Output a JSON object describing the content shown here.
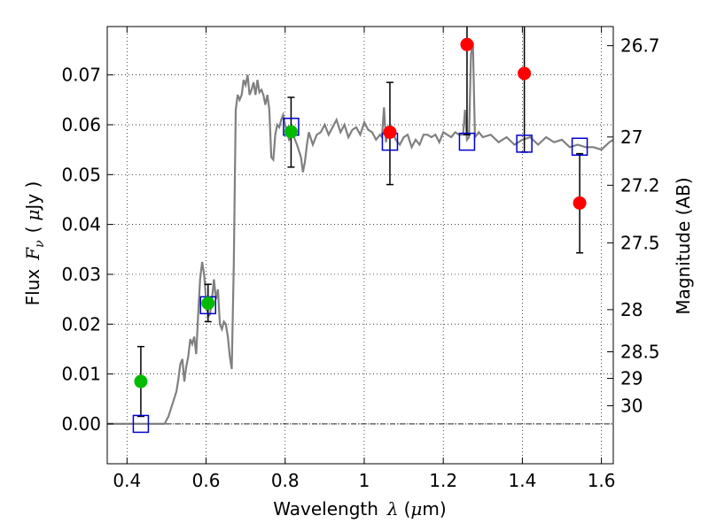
{
  "chart_data": {
    "type": "scatter",
    "xlabel": "Wavelength",
    "xlabel_symbol": "λ",
    "xlabel_unit_open": "(",
    "xlabel_unit_mu": "μ",
    "xlabel_unit_rest": "m)",
    "ylabel": "Flux",
    "ylabel_symbol_base": "F",
    "ylabel_symbol_sub": "ν",
    "ylabel_unit_open": "(",
    "ylabel_unit_mu": "μ",
    "ylabel_unit_rest": "Jy )",
    "ylabel_right": "Magnitude (AB)",
    "xlim": [
      0.35,
      1.63
    ],
    "ylim": [
      -0.008,
      0.0797
    ],
    "grid": true,
    "xticks": [
      {
        "v": 0.4,
        "label": "0.4"
      },
      {
        "v": 0.6,
        "label": "0.6"
      },
      {
        "v": 0.8,
        "label": "0.8"
      },
      {
        "v": 1.0,
        "label": "1"
      },
      {
        "v": 1.2,
        "label": "1.2"
      },
      {
        "v": 1.4,
        "label": "1.4"
      },
      {
        "v": 1.6,
        "label": "1.6"
      }
    ],
    "yticks": [
      {
        "v": 0.0,
        "label": "0.00"
      },
      {
        "v": 0.01,
        "label": "0.01"
      },
      {
        "v": 0.02,
        "label": "0.02"
      },
      {
        "v": 0.03,
        "label": "0.03"
      },
      {
        "v": 0.04,
        "label": "0.04"
      },
      {
        "v": 0.05,
        "label": "0.05"
      },
      {
        "v": 0.06,
        "label": "0.06"
      },
      {
        "v": 0.07,
        "label": "0.07"
      }
    ],
    "right_ticks": [
      {
        "mag": 26.7,
        "label": "26.7"
      },
      {
        "mag": 27.0,
        "label": "27"
      },
      {
        "mag": 27.2,
        "label": "27.2"
      },
      {
        "mag": 27.5,
        "label": "27.5"
      },
      {
        "mag": 28.0,
        "label": "28"
      },
      {
        "mag": 28.5,
        "label": "28.5"
      },
      {
        "mag": 29.0,
        "label": "29"
      },
      {
        "mag": 30.0,
        "label": "30"
      }
    ],
    "spectrum": {
      "color": "#808080",
      "x": [
        0.35,
        0.495,
        0.505,
        0.515,
        0.525,
        0.53,
        0.535,
        0.54,
        0.545,
        0.55,
        0.555,
        0.56,
        0.565,
        0.57,
        0.575,
        0.58,
        0.585,
        0.59,
        0.595,
        0.6,
        0.605,
        0.61,
        0.615,
        0.62,
        0.625,
        0.63,
        0.635,
        0.64,
        0.645,
        0.65,
        0.655,
        0.66,
        0.665,
        0.67,
        0.675,
        0.68,
        0.685,
        0.69,
        0.695,
        0.7,
        0.705,
        0.71,
        0.715,
        0.72,
        0.725,
        0.73,
        0.735,
        0.74,
        0.745,
        0.75,
        0.755,
        0.76,
        0.765,
        0.77,
        0.775,
        0.78,
        0.785,
        0.79,
        0.795,
        0.8,
        0.81,
        0.82,
        0.83,
        0.84,
        0.845,
        0.85,
        0.855,
        0.86,
        0.87,
        0.88,
        0.89,
        0.9,
        0.91,
        0.92,
        0.93,
        0.94,
        0.95,
        0.96,
        0.97,
        0.98,
        0.99,
        1.0,
        1.01,
        1.02,
        1.03,
        1.04,
        1.045,
        1.05,
        1.055,
        1.06,
        1.07,
        1.08,
        1.09,
        1.1,
        1.11,
        1.12,
        1.13,
        1.14,
        1.15,
        1.16,
        1.17,
        1.18,
        1.19,
        1.2,
        1.21,
        1.22,
        1.23,
        1.24,
        1.25,
        1.255,
        1.26,
        1.265,
        1.27,
        1.275,
        1.28,
        1.29,
        1.3,
        1.32,
        1.34,
        1.36,
        1.38,
        1.4,
        1.42,
        1.44,
        1.46,
        1.48,
        1.5,
        1.52,
        1.54,
        1.56,
        1.58,
        1.6,
        1.62,
        1.63
      ],
      "y": [
        0.0,
        0.0,
        0.0015,
        0.004,
        0.0065,
        0.009,
        0.012,
        0.013,
        0.0085,
        0.0115,
        0.0135,
        0.017,
        0.016,
        0.0175,
        0.014,
        0.022,
        0.029,
        0.0325,
        0.03,
        0.025,
        0.0215,
        0.022,
        0.025,
        0.029,
        0.025,
        0.027,
        0.02,
        0.019,
        0.0205,
        0.02,
        0.0175,
        0.0135,
        0.011,
        0.032,
        0.063,
        0.066,
        0.065,
        0.066,
        0.069,
        0.068,
        0.07,
        0.066,
        0.067,
        0.0685,
        0.066,
        0.069,
        0.0665,
        0.067,
        0.066,
        0.064,
        0.066,
        0.063,
        0.0535,
        0.053,
        0.058,
        0.06,
        0.0595,
        0.061,
        0.062,
        0.06,
        0.057,
        0.058,
        0.056,
        0.0535,
        0.0505,
        0.0525,
        0.056,
        0.0585,
        0.056,
        0.058,
        0.0585,
        0.06,
        0.058,
        0.0595,
        0.061,
        0.0585,
        0.06,
        0.0575,
        0.059,
        0.0595,
        0.058,
        0.0605,
        0.059,
        0.0585,
        0.057,
        0.058,
        0.0575,
        0.0635,
        0.0565,
        0.0585,
        0.059,
        0.057,
        0.056,
        0.0575,
        0.058,
        0.0555,
        0.057,
        0.056,
        0.058,
        0.058,
        0.0575,
        0.058,
        0.0565,
        0.0585,
        0.058,
        0.0575,
        0.0585,
        0.058,
        0.058,
        0.063,
        0.057,
        0.0575,
        0.074,
        0.0765,
        0.0575,
        0.0585,
        0.0575,
        0.058,
        0.0565,
        0.0575,
        0.056,
        0.057,
        0.0575,
        0.056,
        0.0575,
        0.0565,
        0.057,
        0.0555,
        0.056,
        0.0555,
        0.0555,
        0.055,
        0.0565,
        0.057
      ]
    },
    "error_bars": [
      {
        "x": 0.435,
        "lo": 0.0015,
        "hi": 0.0155
      },
      {
        "x": 0.605,
        "lo": 0.0205,
        "hi": 0.028
      },
      {
        "x": 0.815,
        "lo": 0.0515,
        "hi": 0.0655
      },
      {
        "x": 1.065,
        "lo": 0.048,
        "hi": 0.0685
      },
      {
        "x": 1.26,
        "lo": 0.058,
        "hi": 0.0797
      },
      {
        "x": 1.405,
        "lo": 0.0545,
        "hi": 0.0797
      },
      {
        "x": 1.545,
        "lo": 0.0343,
        "hi": 0.0542
      }
    ],
    "points_detected": {
      "color": "#00bb00",
      "x": [
        0.435,
        0.605,
        0.815
      ],
      "y": [
        0.0085,
        0.0242,
        0.0586
      ]
    },
    "points_upper_limit": {
      "color": "#ff0000",
      "x": [
        1.065,
        1.26,
        1.405,
        1.545
      ],
      "y": [
        0.0585,
        0.0761,
        0.0703,
        0.0443
      ]
    },
    "model_boxes": {
      "color": "#0000cc",
      "x": [
        0.435,
        0.605,
        0.815,
        1.065,
        1.26,
        1.405,
        1.545
      ],
      "y": [
        0.0,
        0.0238,
        0.0596,
        0.0566,
        0.0566,
        0.0562,
        0.0556
      ]
    }
  }
}
